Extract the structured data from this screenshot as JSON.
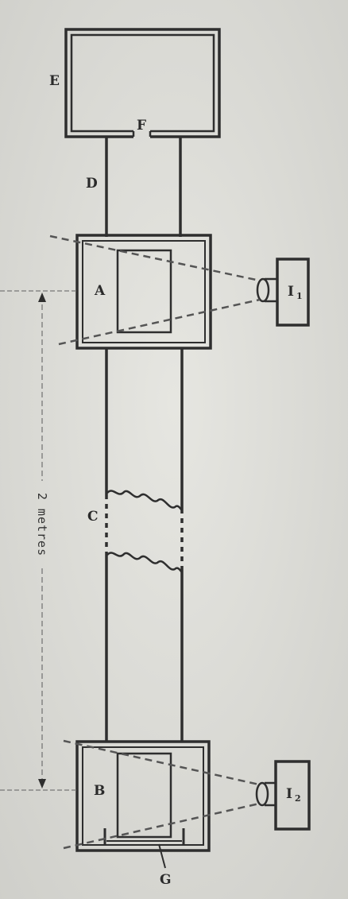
{
  "labels": {
    "E": "E",
    "F": "F",
    "D": "D",
    "A": "A",
    "C": "C",
    "B": "B",
    "G": "G",
    "I1_main": "I",
    "I1_sub": "1",
    "I2_main": "I",
    "I2_sub": "2"
  },
  "dimension": {
    "text": "2 metres"
  },
  "colors": {
    "paper": "#dcdcd7",
    "ink": "#2e2e2e",
    "dashed_ray": "#555555",
    "dimension_line": "#777777"
  }
}
